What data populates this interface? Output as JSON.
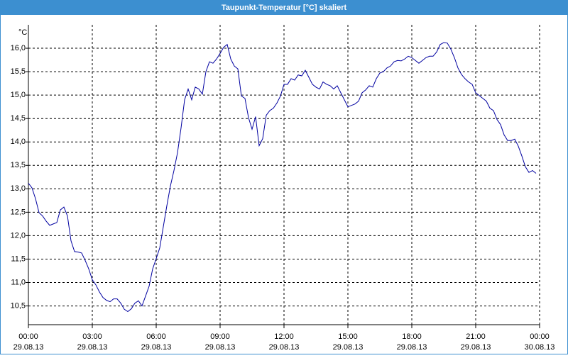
{
  "chart_data": {
    "type": "line",
    "title": "Taupunkt-Temperatur [°C] skaliert",
    "y_label": "°C",
    "x": [
      0,
      10,
      20,
      30,
      40,
      50,
      60,
      70,
      80,
      90,
      100,
      110,
      120,
      130,
      140,
      150,
      160,
      170,
      180,
      190,
      200,
      210,
      220,
      230,
      240,
      250,
      260,
      270,
      280,
      290,
      300,
      310,
      320,
      330,
      340,
      350,
      360,
      370,
      380,
      390,
      400,
      410,
      420,
      430,
      440,
      450,
      460,
      470,
      480,
      490,
      500,
      510,
      520,
      530,
      540,
      550,
      560,
      570,
      580,
      590,
      600,
      610,
      620,
      630,
      640,
      650,
      660,
      670,
      680,
      690,
      700,
      710,
      720,
      730,
      740,
      750,
      760,
      770,
      780,
      790,
      800,
      810,
      820,
      830,
      840,
      850,
      860,
      870,
      880,
      890,
      900,
      910,
      920,
      930,
      940,
      950,
      960,
      970,
      980,
      990,
      1000,
      1010,
      1020,
      1030,
      1040,
      1050,
      1060,
      1070,
      1080,
      1090,
      1100,
      1110,
      1120,
      1130,
      1140,
      1150,
      1160,
      1170,
      1180,
      1190,
      1200,
      1210,
      1220,
      1230,
      1240,
      1250,
      1260,
      1270,
      1280,
      1290,
      1300,
      1310,
      1320,
      1330,
      1340,
      1350,
      1360,
      1370,
      1380,
      1390,
      1400,
      1410,
      1420,
      1430
    ],
    "series": [
      {
        "color": "#0000a0",
        "values": [
          13.12,
          13.02,
          12.79,
          12.49,
          12.42,
          12.31,
          12.22,
          12.25,
          12.28,
          12.55,
          12.61,
          12.42,
          11.89,
          11.66,
          11.65,
          11.63,
          11.47,
          11.29,
          11.06,
          10.95,
          10.8,
          10.68,
          10.62,
          10.59,
          10.65,
          10.65,
          10.56,
          10.43,
          10.38,
          10.44,
          10.56,
          10.61,
          10.5,
          10.71,
          10.92,
          11.29,
          11.51,
          11.74,
          12.19,
          12.64,
          13.06,
          13.39,
          13.77,
          14.3,
          14.9,
          15.13,
          14.9,
          15.17,
          15.13,
          15.02,
          15.5,
          15.71,
          15.68,
          15.77,
          15.89,
          16.02,
          16.08,
          15.77,
          15.62,
          15.56,
          14.98,
          14.93,
          14.52,
          14.27,
          14.54,
          13.92,
          14.07,
          14.57,
          14.67,
          14.72,
          14.83,
          14.98,
          15.23,
          15.23,
          15.35,
          15.32,
          15.43,
          15.41,
          15.53,
          15.38,
          15.23,
          15.17,
          15.13,
          15.28,
          15.23,
          15.2,
          15.13,
          15.2,
          15.05,
          14.9,
          14.75,
          14.78,
          14.81,
          14.87,
          15.05,
          15.11,
          15.2,
          15.17,
          15.35,
          15.47,
          15.5,
          15.58,
          15.62,
          15.71,
          15.74,
          15.73,
          15.77,
          15.83,
          15.8,
          15.74,
          15.68,
          15.74,
          15.8,
          15.83,
          15.83,
          15.92,
          16.08,
          16.12,
          16.11,
          15.98,
          15.8,
          15.58,
          15.44,
          15.35,
          15.28,
          15.23,
          15.05,
          14.99,
          14.93,
          14.87,
          14.72,
          14.67,
          14.48,
          14.37,
          14.15,
          14.03,
          14.03,
          14.06,
          13.91,
          13.7,
          13.47,
          13.35,
          13.39,
          13.33
        ]
      }
    ],
    "xlim": [
      0,
      1440
    ],
    "xticks": [
      {
        "value": 0,
        "label": "00:00",
        "date": "29.08.13"
      },
      {
        "value": 180,
        "label": "03:00",
        "date": "29.08.13"
      },
      {
        "value": 360,
        "label": "06:00",
        "date": "29.08.13"
      },
      {
        "value": 540,
        "label": "09:00",
        "date": "29.08.13"
      },
      {
        "value": 720,
        "label": "12:00",
        "date": "29.08.13"
      },
      {
        "value": 900,
        "label": "15:00",
        "date": "29.08.13"
      },
      {
        "value": 1080,
        "label": "18:00",
        "date": "29.08.13"
      },
      {
        "value": 1260,
        "label": "21:00",
        "date": "29.08.13"
      },
      {
        "value": 1440,
        "label": "00:00",
        "date": "30.08.13"
      }
    ],
    "ylim": [
      10.1,
      16.5
    ],
    "yticks": [
      {
        "value": 10.5,
        "label": "10,5"
      },
      {
        "value": 11,
        "label": "11,0"
      },
      {
        "value": 11.5,
        "label": "11,5"
      },
      {
        "value": 12,
        "label": "12,0"
      },
      {
        "value": 12.5,
        "label": "12,5"
      },
      {
        "value": 13,
        "label": "13,0"
      },
      {
        "value": 13.5,
        "label": "13,5"
      },
      {
        "value": 14,
        "label": "14,0"
      },
      {
        "value": 14.5,
        "label": "14,5"
      },
      {
        "value": 15,
        "label": "15,0"
      },
      {
        "value": 15.5,
        "label": "15,5"
      },
      {
        "value": 16,
        "label": "16,0"
      }
    ],
    "grid": true
  }
}
